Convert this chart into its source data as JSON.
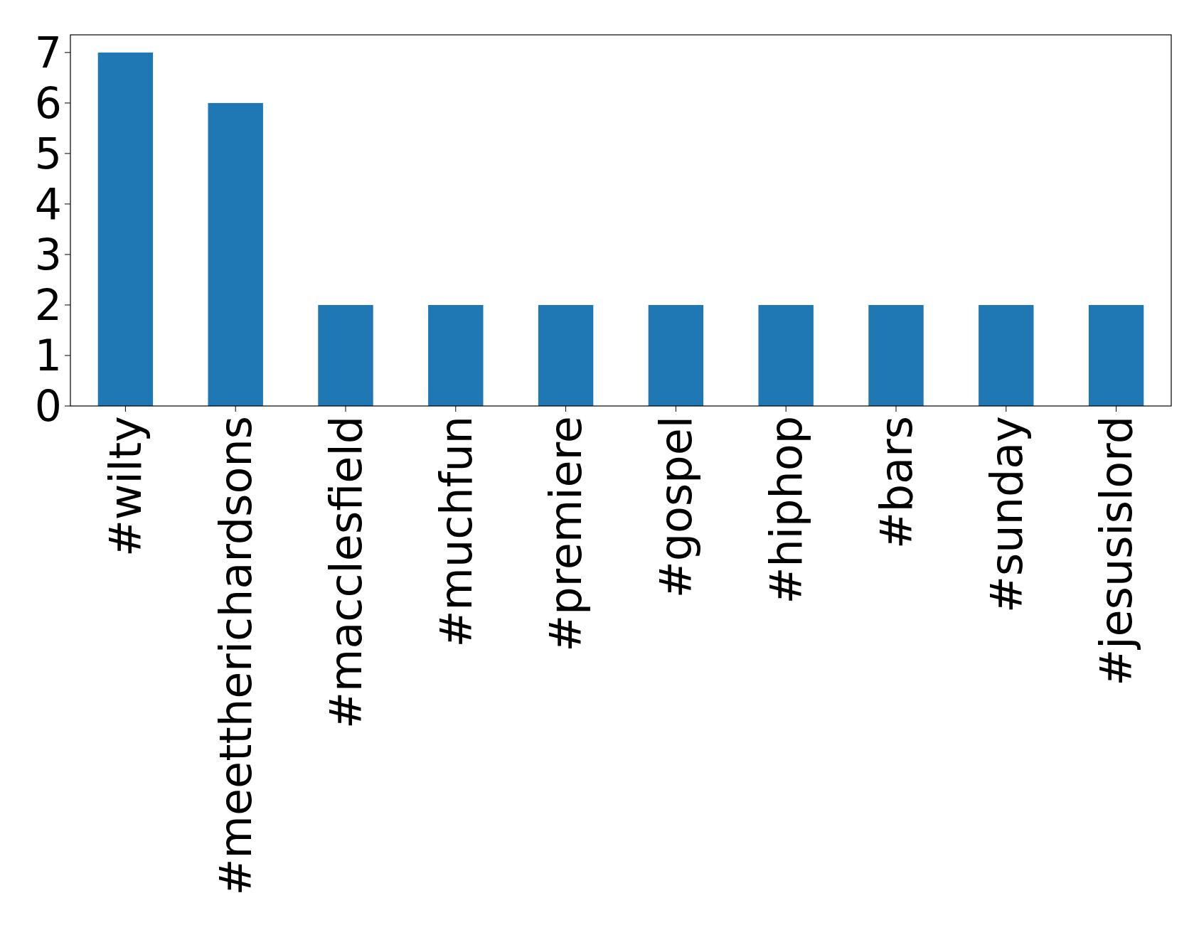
{
  "chart_data": {
    "type": "bar",
    "categories": [
      "#wilty",
      "#meettherichardsons",
      "#macclesfield",
      "#muchfun",
      "#premiere",
      "#gospel",
      "#hiphop",
      "#bars",
      "#sunday",
      "#jesusislord"
    ],
    "values": [
      7,
      6,
      2,
      2,
      2,
      2,
      2,
      2,
      2,
      2
    ],
    "color": "#1f77b4",
    "ylim": [
      0,
      7.35
    ],
    "yticks": [
      0,
      1,
      2,
      3,
      4,
      5,
      6,
      7
    ],
    "grid": false
  }
}
